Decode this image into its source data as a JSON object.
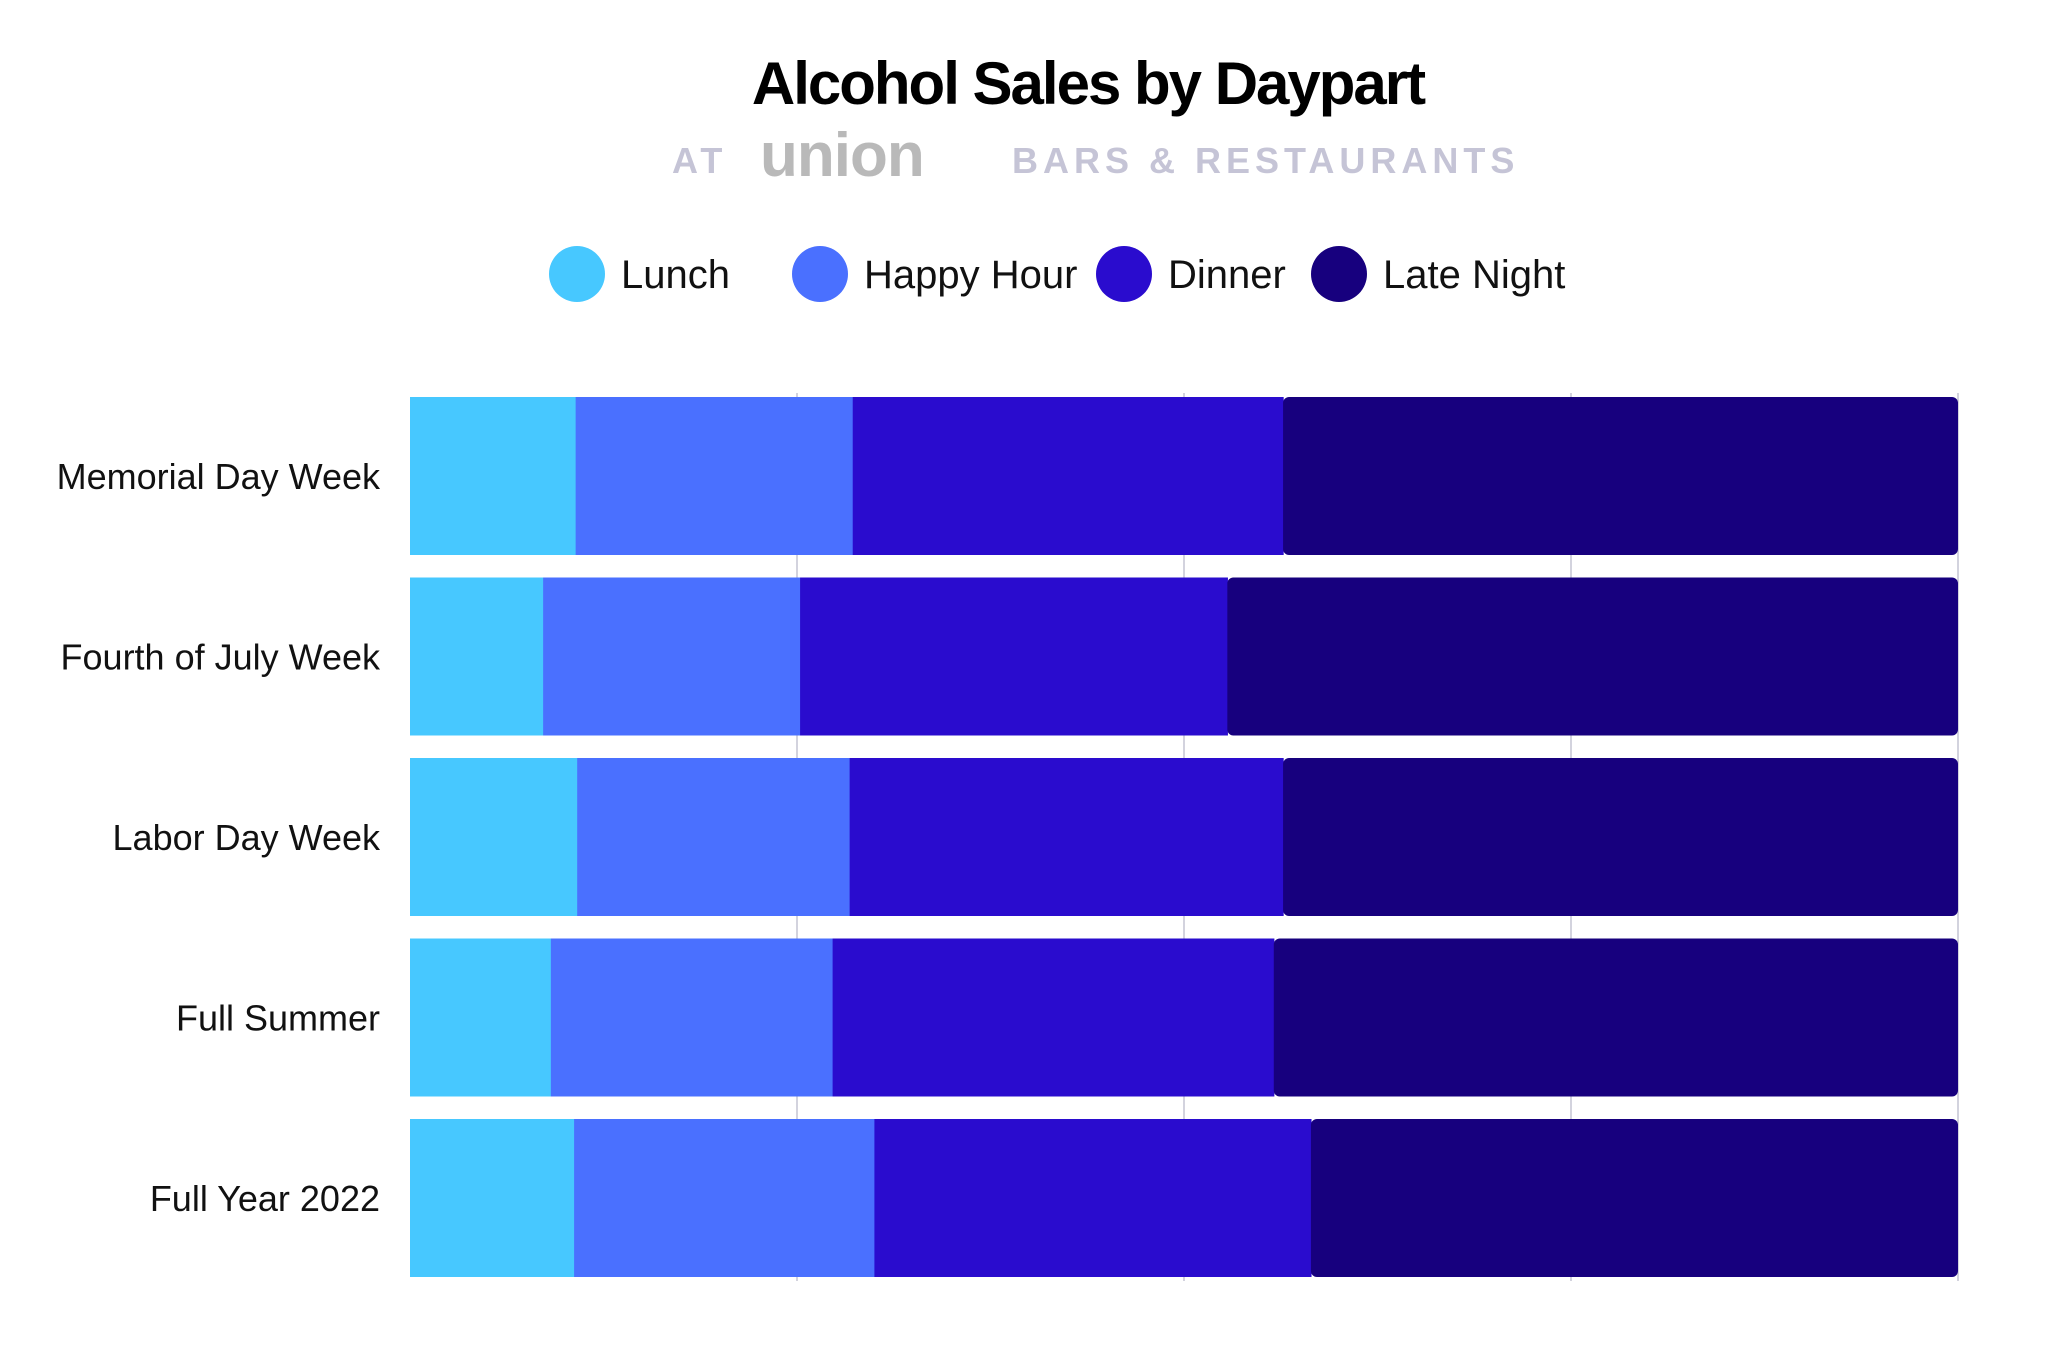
{
  "title": "Alcohol Sales by Daypart",
  "subtitle": {
    "prefix": "AT",
    "logo": "union",
    "suffix": "BARS & RESTAURANTS"
  },
  "colors": {
    "lunch": "#47c8ff",
    "happy_hour": "#4a70ff",
    "dinner": "#2a0cce",
    "late_night": "#17007e",
    "gridline": "#d3d3de"
  },
  "chart_data": {
    "type": "bar",
    "orientation": "horizontal",
    "stacked": true,
    "title": "Alcohol Sales by Daypart",
    "categories": [
      "Memorial Day Week",
      "Fourth of July Week",
      "Labor Day Week",
      "Full Summer",
      "Full Year 2022"
    ],
    "series": [
      {
        "name": "Lunch",
        "color": "#47c8ff",
        "values": [
          10.7,
          8.6,
          10.8,
          9.1,
          10.6
        ]
      },
      {
        "name": "Happy Hour",
        "color": "#4a70ff",
        "values": [
          17.9,
          16.6,
          17.6,
          18.2,
          19.4
        ]
      },
      {
        "name": "Dinner",
        "color": "#2a0cce",
        "values": [
          27.8,
          27.6,
          28.0,
          28.5,
          28.2
        ]
      },
      {
        "name": "Late Night",
        "color": "#17007e",
        "values": [
          43.6,
          47.2,
          43.6,
          44.2,
          41.8
        ]
      }
    ],
    "xlim": [
      0,
      100
    ],
    "gridlines_at": [
      25,
      50,
      75,
      100
    ],
    "grid": true,
    "legend_position": "top",
    "xlabel": "",
    "ylabel": ""
  }
}
